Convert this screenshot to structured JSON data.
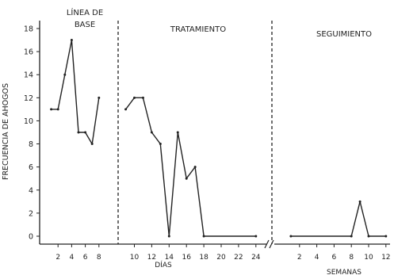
{
  "chart_data": {
    "type": "line",
    "ylabel": "FRECUENCIA DE AHOGOS",
    "ylim": [
      0,
      18
    ],
    "yticks": [
      "0",
      "2",
      "4",
      "6",
      "8",
      "10",
      "12",
      "14",
      "16",
      "18"
    ],
    "phases": [
      {
        "name": "LÍNEA DE BASE",
        "name_lines": [
          "LÍNEA DE",
          "BASE"
        ],
        "xlabel": "DÍAS",
        "xticks": [
          2,
          4,
          6,
          8
        ],
        "xtick_labels": [
          "2",
          "4",
          "6",
          "8"
        ],
        "x": [
          1,
          2,
          3,
          4,
          5,
          6,
          7,
          8
        ],
        "y": [
          11,
          11,
          14,
          17,
          9,
          9,
          8,
          12
        ]
      },
      {
        "name": "TRATAMIENTO",
        "name_lines": [
          "TRATAMIENTO"
        ],
        "xlabel": "DÍAS",
        "xticks": [
          10,
          12,
          14,
          16,
          18,
          20,
          22,
          24
        ],
        "xtick_labels": [
          "10",
          "12",
          "14",
          "16",
          "18",
          "20",
          "22",
          "24"
        ],
        "x": [
          9,
          10,
          11,
          12,
          13,
          14,
          15,
          16,
          17,
          18,
          24
        ],
        "y": [
          11,
          12,
          12,
          9,
          8,
          0,
          9,
          5,
          6,
          0,
          0
        ]
      },
      {
        "name": "SEGUIMIENTO",
        "name_lines": [
          "SEGUIMIENTO"
        ],
        "xlabel": "SEMANAS",
        "xticks": [
          2,
          4,
          6,
          8,
          10,
          12
        ],
        "xtick_labels": [
          "2",
          "4",
          "6",
          "8",
          "10",
          "12"
        ],
        "x": [
          1,
          8,
          9,
          10,
          12
        ],
        "y": [
          0,
          0,
          3,
          0,
          0
        ]
      }
    ]
  }
}
